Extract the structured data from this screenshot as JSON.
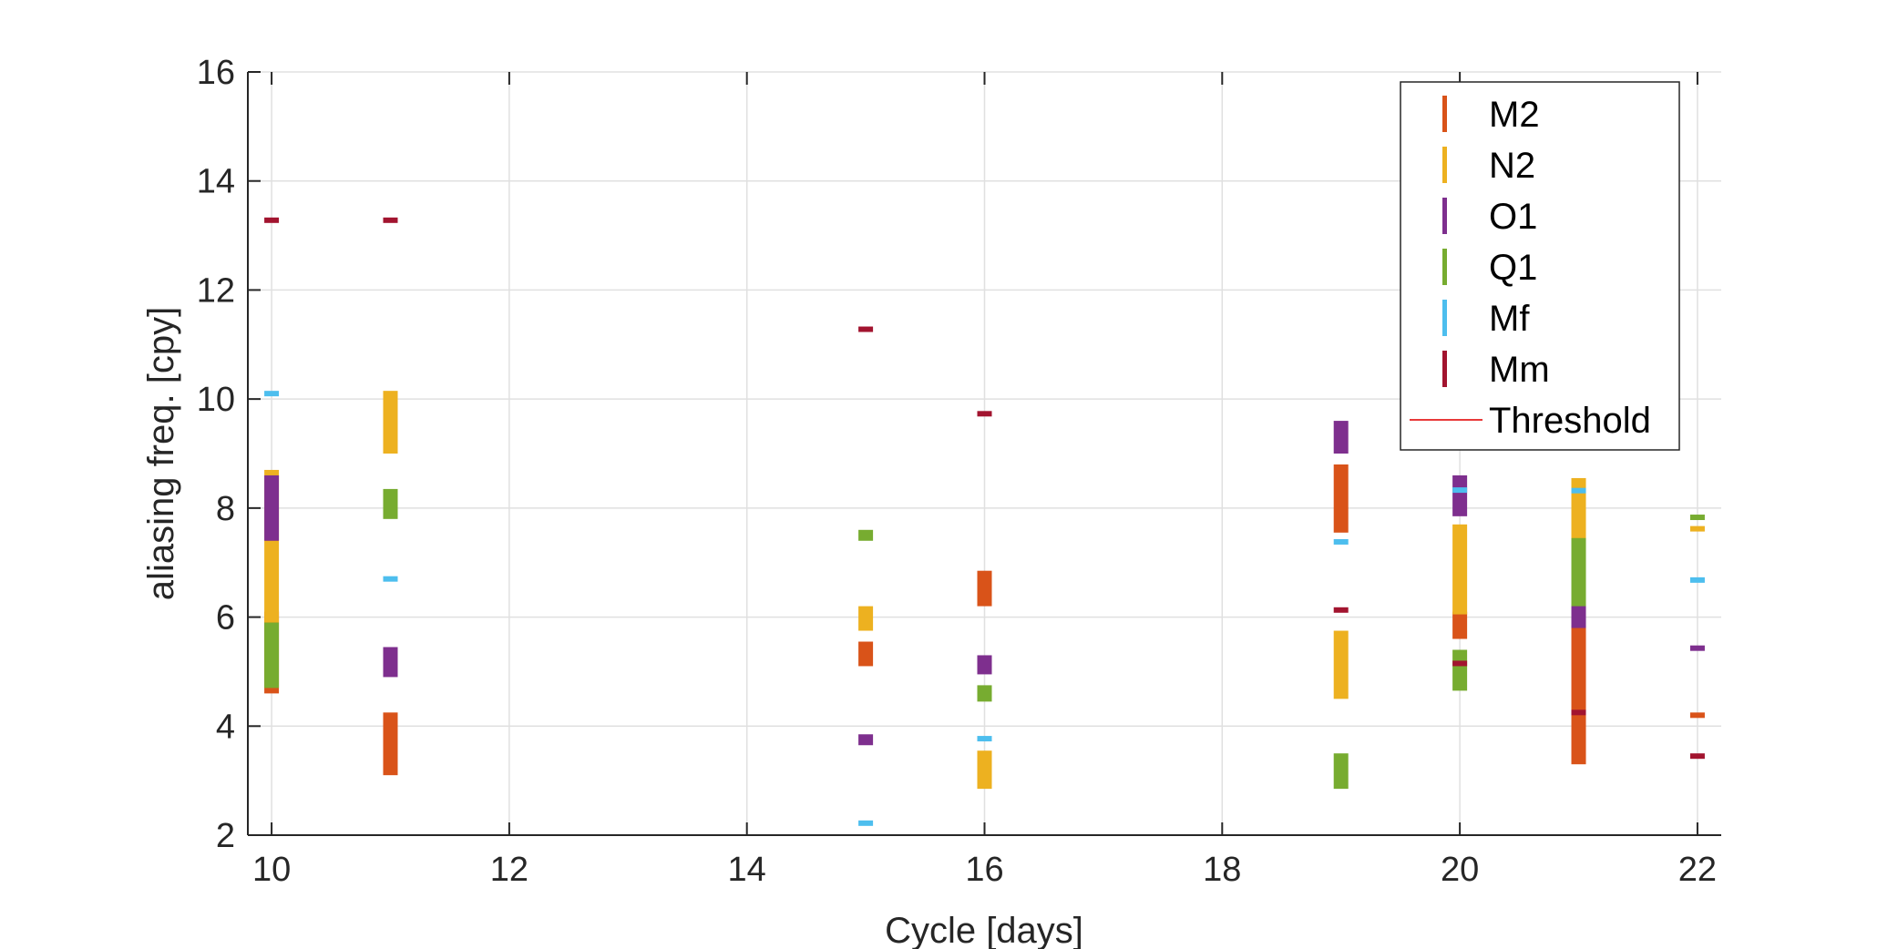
{
  "chart_data": {
    "type": "range-bar",
    "xlabel": "Cycle [days]",
    "ylabel": "aliasing freq. [cpy]",
    "xlim": [
      9.8,
      22.2
    ],
    "ylim": [
      2,
      16
    ],
    "xticks": [
      10,
      12,
      14,
      16,
      18,
      20,
      22
    ],
    "xtick_labels": [
      "10",
      "12",
      "14",
      "16",
      "18",
      "20",
      "22"
    ],
    "yticks": [
      2,
      4,
      6,
      8,
      10,
      12,
      14,
      16
    ],
    "ytick_labels": [
      "2",
      "4",
      "6",
      "8",
      "10",
      "12",
      "14",
      "16"
    ],
    "grid": true,
    "legend_position": "top-right",
    "threshold": {
      "name": "Threshold",
      "y": 2,
      "color": "#E83A3A"
    },
    "series": [
      {
        "name": "M2",
        "color": "#D95319",
        "ranges": [
          [
            10,
            4.6,
            6.1
          ],
          [
            11,
            3.1,
            4.25
          ],
          [
            15,
            5.1,
            5.55
          ],
          [
            16,
            6.2,
            6.85
          ],
          [
            19,
            7.55,
            8.8
          ],
          [
            20,
            5.6,
            6.1
          ],
          [
            21,
            3.3,
            5.85
          ],
          [
            22,
            4.15,
            4.25
          ]
        ]
      },
      {
        "name": "N2",
        "color": "#EDB120",
        "ranges": [
          [
            10,
            5.9,
            8.7
          ],
          [
            11,
            9.0,
            10.15
          ],
          [
            15,
            5.75,
            6.2
          ],
          [
            16,
            2.85,
            3.55
          ],
          [
            19,
            4.5,
            5.75
          ],
          [
            20,
            6.05,
            7.7
          ],
          [
            21,
            7.4,
            8.55
          ],
          [
            22,
            7.57,
            7.67
          ]
        ]
      },
      {
        "name": "O1",
        "color": "#7E2F8E",
        "ranges": [
          [
            10,
            7.4,
            8.6
          ],
          [
            11,
            4.9,
            5.45
          ],
          [
            15,
            3.65,
            3.85
          ],
          [
            16,
            4.95,
            5.3
          ],
          [
            19,
            9.0,
            9.6
          ],
          [
            20,
            7.85,
            8.6
          ],
          [
            21,
            5.8,
            6.25
          ],
          [
            22,
            5.38,
            5.48
          ]
        ]
      },
      {
        "name": "Q1",
        "color": "#77AC30",
        "ranges": [
          [
            10,
            4.7,
            5.9
          ],
          [
            11,
            7.8,
            8.35
          ],
          [
            15,
            7.4,
            7.6
          ],
          [
            16,
            4.45,
            4.75
          ],
          [
            19,
            2.85,
            3.5
          ],
          [
            20,
            4.65,
            5.4
          ],
          [
            21,
            6.2,
            7.45
          ],
          [
            22,
            7.78,
            7.88
          ]
        ]
      },
      {
        "name": "Mf",
        "color": "#4DBEEE",
        "ranges": [
          [
            10,
            10.05,
            10.15
          ],
          [
            11,
            6.65,
            6.75
          ],
          [
            15,
            2.17,
            2.27
          ],
          [
            16,
            3.72,
            3.82
          ],
          [
            19,
            7.33,
            7.43
          ],
          [
            20,
            8.28,
            8.38
          ],
          [
            21,
            8.27,
            8.37
          ],
          [
            22,
            6.63,
            6.73
          ]
        ]
      },
      {
        "name": "Mm",
        "color": "#A2142F",
        "ranges": [
          [
            10,
            13.23,
            13.33
          ],
          [
            11,
            13.23,
            13.33
          ],
          [
            15,
            11.23,
            11.33
          ],
          [
            16,
            9.68,
            9.78
          ],
          [
            19,
            6.08,
            6.18
          ],
          [
            20,
            5.1,
            5.2
          ],
          [
            21,
            4.2,
            4.3
          ],
          [
            22,
            3.4,
            3.5
          ]
        ]
      }
    ]
  }
}
